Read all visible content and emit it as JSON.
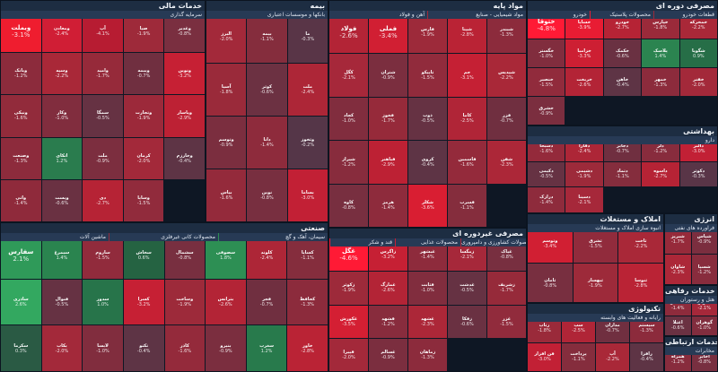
{
  "sectors": [
    {
      "key": "financial",
      "title": "خدمات مالی",
      "sub": [
        {
          "label": "سرمایه گذاری"
        }
      ],
      "cells": [
        {
          "sym": "وبملت",
          "pct": "-3.1%",
          "c": "#ef1d2f",
          "big": true
        },
        {
          "sym": "ومعادن",
          "pct": "-2.4%",
          "c": "#d01e35"
        },
        {
          "sym": "آپ",
          "pct": "-4.1%",
          "c": "#b71c32"
        },
        {
          "sym": "صبا",
          "pct": "-1.9%",
          "c": "#9e2a3a"
        },
        {
          "sym": "وغدیر",
          "pct": "-0.8%",
          "c": "#7a2f40"
        },
        {
          "sym": "وبانک",
          "pct": "-1.2%",
          "c": "#8c2b3c"
        },
        {
          "sym": "وسپه",
          "pct": "-2.2%",
          "c": "#a92838"
        },
        {
          "sym": "وامید",
          "pct": "-1.7%",
          "c": "#962a3a"
        },
        {
          "sym": "وبیمه",
          "pct": "-0.7%",
          "c": "#702f40"
        },
        {
          "sym": "ونوین",
          "pct": "-3.2%",
          "c": "#c62034"
        },
        {
          "sym": "ونیکی",
          "pct": "-1.6%",
          "c": "#922b3b"
        },
        {
          "sym": "وکار",
          "pct": "-1.0%",
          "c": "#812d3e"
        },
        {
          "sym": "سمگا",
          "pct": "-0.5%",
          "c": "#663243"
        },
        {
          "sym": "وتجارت",
          "pct": "-1.9%",
          "c": "#9c293a"
        },
        {
          "sym": "وپاسار",
          "pct": "-2.9%",
          "c": "#bd2134"
        },
        {
          "sym": "وصنعت",
          "pct": "-1.3%",
          "c": "#8d2b3c"
        },
        {
          "sym": "اتکای",
          "pct": "1.2%",
          "c": "#2a7c4e"
        },
        {
          "sym": "ملت",
          "pct": "-0.9%",
          "c": "#7c2e3f"
        },
        {
          "sym": "کرمان",
          "pct": "-2.0%",
          "c": "#a3293a"
        },
        {
          "sym": "وخارزم",
          "pct": "-0.4%",
          "c": "#5e3445"
        },
        {
          "sym": "واتی",
          "pct": "-1.4%",
          "c": "#8f2a3b"
        },
        {
          "sym": "وپست",
          "pct": "-0.6%",
          "c": "#6a3142"
        },
        {
          "sym": "دی",
          "pct": "-2.7%",
          "c": "#b62335"
        },
        {
          "sym": "وساپا",
          "pct": "-1.5%",
          "c": "#912b3c"
        }
      ]
    },
    {
      "key": "insurance",
      "title": "بیمه",
      "sub": [
        {
          "label": "بانکها و موسسات اعتباری"
        }
      ],
      "cells": [
        {
          "sym": "البرز",
          "pct": "-2.0%",
          "c": "#a3293a"
        },
        {
          "sym": "بیمه",
          "pct": "-1.1%",
          "c": "#852d3d"
        },
        {
          "sym": "ما",
          "pct": "-0.3%",
          "c": "#593547"
        },
        {
          "sym": "آسیا",
          "pct": "-1.8%",
          "c": "#9a2a3a"
        },
        {
          "sym": "کوثر",
          "pct": "-0.6%",
          "c": "#6c3142"
        },
        {
          "sym": "ملت",
          "pct": "-2.4%",
          "c": "#ad2637"
        },
        {
          "sym": "وتوسم",
          "pct": "-0.9%",
          "c": "#7b2e3f"
        },
        {
          "sym": "دانا",
          "pct": "-1.4%",
          "c": "#8e2b3c"
        },
        {
          "sym": "وثخوز",
          "pct": "-0.2%",
          "c": "#553648"
        },
        {
          "sym": "بپاس",
          "pct": "-1.6%",
          "c": "#942a3b"
        },
        {
          "sym": "نوین",
          "pct": "-0.8%",
          "c": "#782f40"
        },
        {
          "sym": "بساما",
          "pct": "-3.0%",
          "c": "#c22035"
        }
      ]
    },
    {
      "key": "basic",
      "title": "مواد پایه",
      "sub": [
        {
          "label": "مواد شیمیایی - صنایع"
        },
        {
          "label": "آهن و فولاد"
        }
      ],
      "cells": [
        {
          "sym": "فولاد",
          "pct": "-2.6%",
          "c": "#b32436",
          "big": true
        },
        {
          "sym": "فملی",
          "pct": "-3.4%",
          "c": "#d11f33",
          "big": true
        },
        {
          "sym": "فارس",
          "pct": "-1.9%",
          "c": "#9d2a3a"
        },
        {
          "sym": "شپنا",
          "pct": "-2.8%",
          "c": "#ba2335"
        },
        {
          "sym": "شبندر",
          "pct": "-1.3%",
          "c": "#8c2b3c"
        },
        {
          "sym": "کگل",
          "pct": "-2.1%",
          "c": "#a6283a"
        },
        {
          "sym": "شتران",
          "pct": "-0.9%",
          "c": "#7b2e3f"
        },
        {
          "sym": "تاپیکو",
          "pct": "-1.5%",
          "c": "#912b3c"
        },
        {
          "sym": "جم",
          "pct": "-3.1%",
          "c": "#c52034"
        },
        {
          "sym": "شپدیس",
          "pct": "-2.2%",
          "c": "#a92838"
        },
        {
          "sym": "کچاد",
          "pct": "-1.0%",
          "c": "#812d3e"
        },
        {
          "sym": "فخوز",
          "pct": "-1.7%",
          "c": "#962a3a"
        },
        {
          "sym": "ذوب",
          "pct": "-0.5%",
          "c": "#663243"
        },
        {
          "sym": "کاما",
          "pct": "-2.5%",
          "c": "#b02537"
        },
        {
          "sym": "فزر",
          "pct": "-0.7%",
          "c": "#702f40"
        },
        {
          "sym": "شیراز",
          "pct": "-1.2%",
          "c": "#882c3d"
        },
        {
          "sym": "فباهنر",
          "pct": "-2.9%",
          "c": "#bd2134"
        },
        {
          "sym": "کروی",
          "pct": "-0.4%",
          "c": "#5e3445"
        },
        {
          "sym": "فاسمین",
          "pct": "-1.6%",
          "c": "#942a3b"
        },
        {
          "sym": "شفن",
          "pct": "-2.3%",
          "c": "#ac2738"
        },
        {
          "sym": "کاوه",
          "pct": "-0.8%",
          "c": "#782f40"
        },
        {
          "sym": "هرمز",
          "pct": "-1.4%",
          "c": "#8e2b3c"
        },
        {
          "sym": "شکلر",
          "pct": "-3.6%",
          "c": "#d91e32"
        },
        {
          "sym": "فسرب",
          "pct": "-1.1%",
          "c": "#852d3d"
        }
      ]
    },
    {
      "key": "durable",
      "title": "مصرفی دوره ای",
      "sub": [
        {
          "label": "قطعات خودرو"
        },
        {
          "label": "محصولات پلاستیک"
        },
        {
          "label": "خودرو"
        }
      ],
      "cells": [
        {
          "sym": "ختوقا",
          "pct": "-4.8%",
          "c": "#ff1a35",
          "big": true
        },
        {
          "sym": "خساپا",
          "pct": "-3.9%",
          "c": "#e81c33"
        },
        {
          "sym": "خودرو",
          "pct": "-2.7%",
          "c": "#b62335"
        },
        {
          "sym": "خپارس",
          "pct": "-1.8%",
          "c": "#9a2a3a"
        },
        {
          "sym": "خمحرکه",
          "pct": "-2.2%",
          "c": "#a92838"
        },
        {
          "sym": "خگستر",
          "pct": "-1.0%",
          "c": "#812d3e"
        },
        {
          "sym": "خزامیا",
          "pct": "-3.3%",
          "c": "#cd1f33"
        },
        {
          "sym": "خکمک",
          "pct": "-0.6%",
          "c": "#6a3142"
        },
        {
          "sym": "پلاسک",
          "pct": "1.4%",
          "c": "#2b8450"
        },
        {
          "sym": "شگویا",
          "pct": "0.9%",
          "c": "#266e47"
        },
        {
          "sym": "خنصیر",
          "pct": "-1.5%",
          "c": "#912b3c"
        },
        {
          "sym": "خریخت",
          "pct": "-2.6%",
          "c": "#b32436"
        },
        {
          "sym": "خاهن",
          "pct": "-0.4%",
          "c": "#5e3445"
        },
        {
          "sym": "خمهر",
          "pct": "-1.3%",
          "c": "#8c2b3c"
        },
        {
          "sym": "خفنر",
          "pct": "-2.0%",
          "c": "#a3293a"
        },
        {
          "sym": "خشرق",
          "pct": "-0.9%",
          "c": "#7b2e3f"
        }
      ]
    },
    {
      "key": "health",
      "title": "بهداشتی",
      "sub": [
        {
          "label": "دارو"
        }
      ],
      "cells": [
        {
          "sym": "دسبحا",
          "pct": "-1.6%",
          "c": "#942a3b"
        },
        {
          "sym": "دفارا",
          "pct": "-2.4%",
          "c": "#ad2637"
        },
        {
          "sym": "دجابر",
          "pct": "-0.7%",
          "c": "#702f40"
        },
        {
          "sym": "دلر",
          "pct": "-1.2%",
          "c": "#882c3d"
        },
        {
          "sym": "دالبر",
          "pct": "-3.0%",
          "c": "#c22035"
        },
        {
          "sym": "دکیمی",
          "pct": "-0.5%",
          "c": "#663243"
        },
        {
          "sym": "دشیمی",
          "pct": "-1.9%",
          "c": "#9d2a3a"
        },
        {
          "sym": "دتماد",
          "pct": "-1.1%",
          "c": "#852d3d"
        },
        {
          "sym": "داسوه",
          "pct": "-2.7%",
          "c": "#b62335"
        },
        {
          "sym": "دکوثر",
          "pct": "-0.3%",
          "c": "#593547"
        },
        {
          "sym": "درازک",
          "pct": "-1.4%",
          "c": "#8e2b3c"
        },
        {
          "sym": "دسینا",
          "pct": "-2.1%",
          "c": "#a6283a"
        }
      ]
    },
    {
      "key": "realestate",
      "title": "املاک و مستغلات",
      "sub": [
        {
          "label": "انبوه سازی املاک و مستغلات"
        }
      ],
      "cells": [
        {
          "sym": "وتوسم",
          "pct": "-3.4%",
          "c": "#d11f33"
        },
        {
          "sym": "ثشرق",
          "pct": "-1.5%",
          "c": "#912b3c"
        },
        {
          "sym": "ثاخت",
          "pct": "-2.2%",
          "c": "#a92838"
        },
        {
          "sym": "ثامان",
          "pct": "-0.8%",
          "c": "#782f40"
        },
        {
          "sym": "ثبهساز",
          "pct": "-1.9%",
          "c": "#9d2a3a"
        },
        {
          "sym": "ثنوسا",
          "pct": "-2.8%",
          "c": "#ba2335"
        }
      ]
    },
    {
      "key": "energy",
      "title": "انرژی",
      "sub": [
        {
          "label": "فراورده های نفتی"
        }
      ],
      "cells": [
        {
          "sym": "شبریز",
          "pct": "-1.7%",
          "c": "#962a3a"
        },
        {
          "sym": "شپاس",
          "pct": "-0.9%",
          "c": "#7b2e3f"
        },
        {
          "sym": "شاوان",
          "pct": "-2.3%",
          "c": "#ac2738"
        },
        {
          "sym": "شسپا",
          "pct": "-1.2%",
          "c": "#882c3d"
        }
      ]
    },
    {
      "key": "industrial",
      "title": "صنعتی",
      "sub": [
        {
          "label": "سیمان، آهک و گچ"
        },
        {
          "label": "محصولات کانی غیرفلزی"
        },
        {
          "label": "ماشین آلات"
        }
      ],
      "cells": [
        {
          "sym": "سفارس",
          "pct": "2.1%",
          "c": "#2f9a59",
          "big": true
        },
        {
          "sym": "سیمرغ",
          "pct": "1.4%",
          "c": "#2a844f"
        },
        {
          "sym": "ساروم",
          "pct": "-1.5%",
          "c": "#912b3c"
        },
        {
          "sym": "سخاش",
          "pct": "0.6%",
          "c": "#256342"
        },
        {
          "sym": "سشمال",
          "pct": "-0.8%",
          "c": "#782f40"
        },
        {
          "sym": "سصوفی",
          "pct": "1.8%",
          "c": "#2d8f54"
        },
        {
          "sym": "کلوند",
          "pct": "-2.4%",
          "c": "#ad2637"
        },
        {
          "sym": "کساپا",
          "pct": "-1.1%",
          "c": "#852d3d"
        },
        {
          "sym": "ساذری",
          "pct": "2.6%",
          "c": "#33a860"
        },
        {
          "sym": "فنوال",
          "pct": "-0.5%",
          "c": "#663243"
        },
        {
          "sym": "سدور",
          "pct": "1.0%",
          "c": "#27744a"
        },
        {
          "sym": "کسرا",
          "pct": "-3.2%",
          "c": "#c62034"
        },
        {
          "sym": "وساخت",
          "pct": "-1.9%",
          "c": "#9d2a3a"
        },
        {
          "sym": "بترانس",
          "pct": "-2.6%",
          "c": "#b32436"
        },
        {
          "sym": "فجر",
          "pct": "-0.7%",
          "c": "#702f40"
        },
        {
          "sym": "کحافظ",
          "pct": "-1.3%",
          "c": "#8c2b3c"
        },
        {
          "sym": "سکرما",
          "pct": "0.3%",
          "c": "#2a5a44"
        },
        {
          "sym": "بکاب",
          "pct": "-2.0%",
          "c": "#a3293a"
        },
        {
          "sym": "لابسا",
          "pct": "-1.0%",
          "c": "#812d3e"
        },
        {
          "sym": "تکنو",
          "pct": "-0.4%",
          "c": "#5e3445"
        },
        {
          "sym": "کاذر",
          "pct": "-1.6%",
          "c": "#942a3b"
        },
        {
          "sym": "بنیرو",
          "pct": "-0.9%",
          "c": "#7b2e3f"
        },
        {
          "sym": "سغرب",
          "pct": "1.2%",
          "c": "#287a4c"
        },
        {
          "sym": "خاور",
          "pct": "-2.8%",
          "c": "#ba2335"
        }
      ]
    },
    {
      "key": "nondurable",
      "title": "مصرفی غیردوره ای",
      "sub": [
        {
          "label": "محصولات کشاورزی و دامپروری"
        },
        {
          "label": "محصولات غذایی"
        },
        {
          "label": "قند و شکر"
        }
      ],
      "cells": [
        {
          "sym": "غگل",
          "pct": "-4.6%",
          "c": "#ff1a35",
          "big": true
        },
        {
          "sym": "زاگرس",
          "pct": "-3.2%",
          "c": "#c62034"
        },
        {
          "sym": "غبشهر",
          "pct": "-1.4%",
          "c": "#8e2b3c"
        },
        {
          "sym": "زمگسا",
          "pct": "-2.1%",
          "c": "#a6283a"
        },
        {
          "sym": "غپاک",
          "pct": "-0.8%",
          "c": "#782f40"
        },
        {
          "sym": "زکوثر",
          "pct": "-1.9%",
          "c": "#9d2a3a"
        },
        {
          "sym": "غمارگ",
          "pct": "-2.6%",
          "c": "#b32436"
        },
        {
          "sym": "قثابت",
          "pct": "-1.0%",
          "c": "#812d3e"
        },
        {
          "sym": "غدشت",
          "pct": "-0.5%",
          "c": "#663243"
        },
        {
          "sym": "زشریف",
          "pct": "-1.7%",
          "c": "#962a3a"
        },
        {
          "sym": "غکورش",
          "pct": "-3.5%",
          "c": "#d41f33"
        },
        {
          "sym": "قشهد",
          "pct": "-1.2%",
          "c": "#882c3d"
        },
        {
          "sym": "غشهد",
          "pct": "-2.3%",
          "c": "#ac2738"
        },
        {
          "sym": "زفکا",
          "pct": "-0.6%",
          "c": "#6a3142"
        },
        {
          "sym": "غزر",
          "pct": "-1.5%",
          "c": "#912b3c"
        },
        {
          "sym": "قپیرا",
          "pct": "-2.0%",
          "c": "#a3293a"
        },
        {
          "sym": "غسالم",
          "pct": "-0.9%",
          "c": "#7b2e3f"
        },
        {
          "sym": "زماهان",
          "pct": "-1.3%",
          "c": "#8c2b3c"
        }
      ]
    },
    {
      "key": "tech",
      "title": "تکنولوژی",
      "sub": [
        {
          "label": "رایانه و فعالیت های وابسته"
        }
      ],
      "cells": [
        {
          "sym": "رتاپ",
          "pct": "-1.8%",
          "c": "#9a2a3a"
        },
        {
          "sym": "سپ",
          "pct": "-2.5%",
          "c": "#b02537"
        },
        {
          "sym": "مداران",
          "pct": "-0.7%",
          "c": "#702f40"
        },
        {
          "sym": "سیستم",
          "pct": "-1.3%",
          "c": "#8c2b3c"
        },
        {
          "sym": "فن افزار",
          "pct": "-3.0%",
          "c": "#c22035"
        },
        {
          "sym": "پرداخت",
          "pct": "-1.1%",
          "c": "#852d3d"
        },
        {
          "sym": "آپ",
          "pct": "-2.2%",
          "c": "#a92838"
        },
        {
          "sym": "رافزا",
          "pct": "-0.4%",
          "c": "#5e3445"
        }
      ]
    },
    {
      "key": "retail",
      "title": "خدمات رفاهی",
      "sub": [
        {
          "label": "هتل و رستوران"
        }
      ],
      "cells": [
        {
          "sym": "گلستان",
          "pct": "-1.4%",
          "c": "#8e2b3c"
        },
        {
          "sym": "گکوثر",
          "pct": "-2.1%",
          "c": "#a6283a"
        },
        {
          "sym": "اعتلا",
          "pct": "-0.6%",
          "c": "#6a3142"
        },
        {
          "sym": "گوهران",
          "pct": "-1.0%",
          "c": "#812d3e"
        }
      ]
    },
    {
      "key": "telecom",
      "title": "خدمات ارتباطی",
      "sub": [
        {
          "label": "مخابرات"
        }
      ],
      "cells": [
        {
          "sym": "همراه",
          "pct": "-1.2%",
          "c": "#882c3d"
        },
        {
          "sym": "اخابر",
          "pct": "-0.8%",
          "c": "#782f40"
        }
      ]
    }
  ]
}
